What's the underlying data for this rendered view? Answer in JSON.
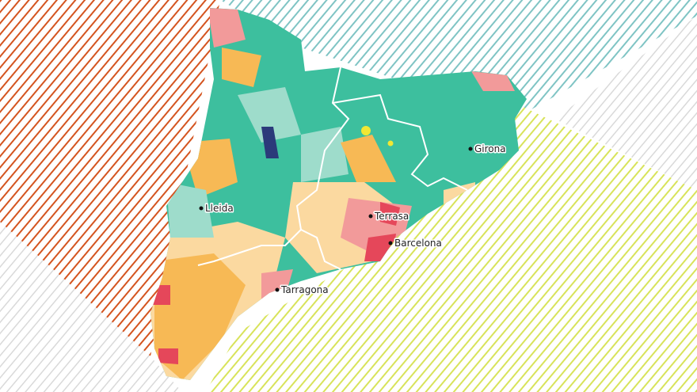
{
  "map": {
    "cities": [
      {
        "name": "Girona"
      },
      {
        "name": "Lleida"
      },
      {
        "name": "Terrasa"
      },
      {
        "name": "Barcelona"
      },
      {
        "name": "Tarragona"
      }
    ],
    "colors": {
      "stripe_top_left": "#d4541f",
      "stripe_top_right": "#7fc4c4",
      "stripe_bottom_right": "#d8e35a",
      "stripe_bottom_left": "#d9d9d9",
      "region_base": "#3dbf9e",
      "patch_orange": "#f7b955",
      "patch_light_orange": "#fbd9a0",
      "patch_pink": "#f29a9a",
      "patch_red": "#e5475a",
      "patch_light_teal": "#9edccb",
      "patch_navy": "#2b3a7a",
      "patch_yellow": "#f2e733",
      "border": "#ffffff"
    }
  }
}
